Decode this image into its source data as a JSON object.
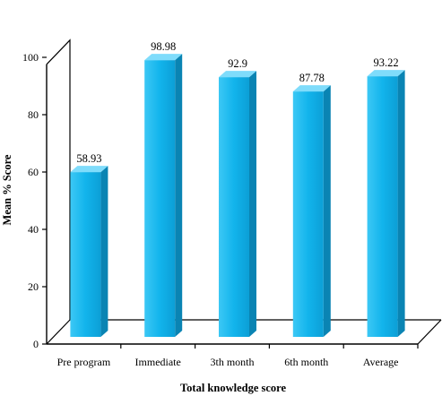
{
  "chart_data": {
    "type": "bar",
    "title": "",
    "xlabel": "Total knowledge score",
    "ylabel": "Mean % Score",
    "categories": [
      "Pre program",
      "Immediate",
      "3th month",
      "6th month",
      "Average"
    ],
    "values": [
      58.93,
      98.98,
      92.9,
      87.78,
      93.22
    ],
    "value_labels": [
      "58.93",
      "98.98",
      "92.9",
      "87.78",
      "93.22"
    ],
    "ylim": [
      0,
      100
    ],
    "yticks": [
      0,
      20,
      40,
      60,
      80,
      100
    ],
    "grid": false,
    "legend": "none",
    "three_d": true,
    "colors": {
      "bar_front": "#12b4ec",
      "bar_top": "#7fdcfb",
      "bar_side": "#0a84b3",
      "axis": "#000000"
    }
  }
}
